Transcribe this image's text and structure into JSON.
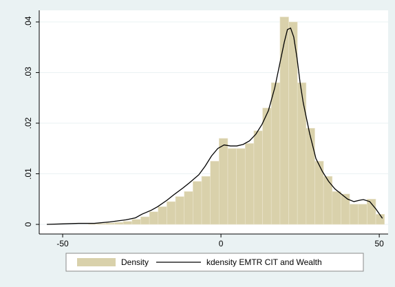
{
  "chart_data": {
    "type": "histogram",
    "bins": [
      -55.6,
      -52.85,
      -50.1,
      -47.35,
      -44.6,
      -41.85,
      -39.1,
      -36.35,
      -33.6,
      -30.85,
      -28.1,
      -25.35,
      -22.6,
      -19.85,
      -17.1,
      -14.35,
      -11.6,
      -8.85,
      -6.1,
      -3.35,
      -0.6,
      2.15,
      4.9,
      7.65,
      10.4,
      13.15,
      15.9,
      18.65,
      21.4,
      24.15,
      26.9,
      29.65,
      32.4,
      35.15,
      37.9,
      40.65,
      43.4,
      46.15,
      48.9,
      51.65
    ],
    "series": [
      {
        "name": "Density",
        "color": "#d9d1ab",
        "values": [
          0,
          0,
          0,
          0,
          0,
          0.0001,
          0.0002,
          0.0003,
          0.0004,
          0.0006,
          0.001,
          0.0015,
          0.0025,
          0.0035,
          0.0045,
          0.0055,
          0.0065,
          0.0085,
          0.0095,
          0.0125,
          0.017,
          0.015,
          0.015,
          0.016,
          0.0185,
          0.023,
          0.028,
          0.041,
          0.04,
          0.028,
          0.019,
          0.0125,
          0.0095,
          0.0065,
          0.006,
          0.004,
          0.004,
          0.005,
          0.002
        ]
      },
      {
        "name": "kdensity EMTR CIT and Wealth",
        "color": "#000000",
        "x": [
          -55,
          -50,
          -45,
          -40,
          -35,
          -30,
          -27,
          -25,
          -22,
          -20,
          -17,
          -15,
          -12,
          -10,
          -7,
          -5,
          -3,
          -1,
          1,
          3,
          5,
          7,
          9,
          11,
          13,
          15,
          17,
          19,
          20,
          21,
          22,
          23,
          24,
          25,
          26,
          28,
          30,
          32,
          34,
          36,
          38,
          40,
          42,
          44,
          45,
          47,
          49,
          51
        ],
        "values": [
          0,
          0.0001,
          0.0002,
          0.0002,
          0.0005,
          0.0009,
          0.0013,
          0.002,
          0.0028,
          0.0035,
          0.0048,
          0.0058,
          0.0072,
          0.0082,
          0.0098,
          0.0115,
          0.0135,
          0.015,
          0.0157,
          0.0155,
          0.0155,
          0.0158,
          0.0165,
          0.0178,
          0.0198,
          0.0225,
          0.027,
          0.033,
          0.036,
          0.0385,
          0.0388,
          0.037,
          0.033,
          0.028,
          0.024,
          0.018,
          0.013,
          0.0105,
          0.0085,
          0.007,
          0.006,
          0.005,
          0.0045,
          0.0048,
          0.0049,
          0.0045,
          0.003,
          0.0012
        ]
      }
    ],
    "xlim": [
      -57.4,
      52.8
    ],
    "ylim": [
      -0.0019,
      0.0423
    ],
    "xticks": [
      -50,
      0,
      50
    ],
    "yticks": [
      0,
      {
        "value": 0.01,
        "label": ".01"
      },
      {
        "value": 0.02,
        "label": ".02"
      },
      {
        "value": 0.03,
        "label": ".03"
      },
      {
        "value": 0.04,
        "label": ".04"
      }
    ],
    "grid": true
  }
}
